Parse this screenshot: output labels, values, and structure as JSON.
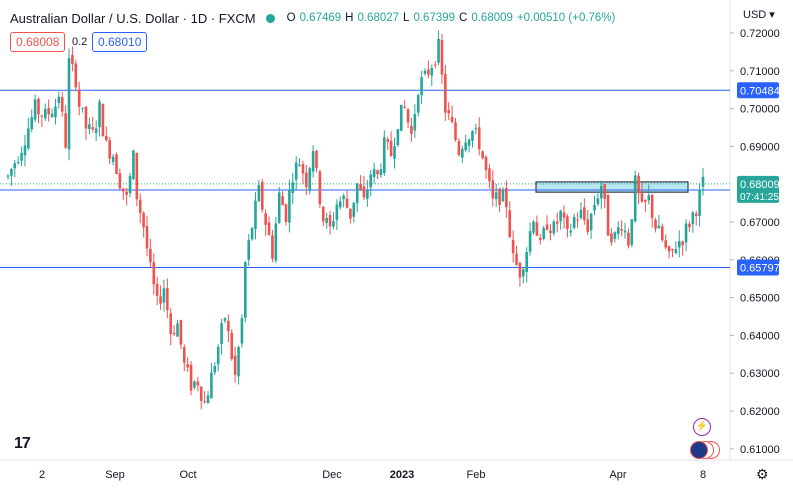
{
  "header": {
    "title": "Australian Dollar / U.S. Dollar · 1D · FXCM",
    "open_label": "O",
    "open": "0.67469",
    "high_label": "H",
    "high": "0.68027",
    "low_label": "L",
    "low": "0.67399",
    "close_label": "C",
    "close": "0.68009",
    "change": "+0.00510 (+0.76%)"
  },
  "trade": {
    "sell": "0.68008",
    "spread": "0.2",
    "buy": "0.68010"
  },
  "currency": "USD",
  "colors": {
    "up": "#26a69a",
    "down": "#ef5350",
    "hline": "#2962ff",
    "zone": "#7fd3e6"
  },
  "chart_data": {
    "type": "candlestick",
    "y_ticks": [
      "0.72000",
      "0.71000",
      "0.70000",
      "0.69000",
      "0.67000",
      "0.66000",
      "0.65000",
      "0.64000",
      "0.63000",
      "0.62000",
      "0.61000"
    ],
    "y_tick_values": [
      0.72,
      0.71,
      0.7,
      0.69,
      0.67,
      0.66,
      0.65,
      0.64,
      0.63,
      0.62,
      0.61
    ],
    "x_ticks": [
      "2",
      "Sep",
      "Oct",
      "Dec",
      "2023",
      "Feb",
      "Apr",
      "8"
    ],
    "horizontal_lines": [
      {
        "value": 0.70484,
        "label": "0.70484"
      },
      {
        "value": 0.67846,
        "label": "0.67846"
      },
      {
        "value": 0.65797,
        "label": "0.65797"
      }
    ],
    "last_price": {
      "value": 0.68009,
      "label": "0.68009",
      "countdown": "07:41:25"
    },
    "zone": {
      "from": 0.6779,
      "to": 0.6806
    },
    "path": [
      [
        0,
        0.682
      ],
      [
        4,
        0.69
      ],
      [
        8,
        0.7
      ],
      [
        11,
        0.698
      ],
      [
        14,
        0.701
      ],
      [
        15,
        0.704
      ],
      [
        17,
        0.691
      ],
      [
        18,
        0.712
      ],
      [
        20,
        0.708
      ],
      [
        21,
        0.701
      ],
      [
        23,
        0.695
      ],
      [
        25,
        0.693
      ],
      [
        27,
        0.7
      ],
      [
        29,
        0.69
      ],
      [
        31,
        0.688
      ],
      [
        33,
        0.681
      ],
      [
        35,
        0.676
      ],
      [
        37,
        0.687
      ],
      [
        38,
        0.677
      ],
      [
        40,
        0.669
      ],
      [
        42,
        0.657
      ],
      [
        44,
        0.648
      ],
      [
        46,
        0.653
      ],
      [
        48,
        0.641
      ],
      [
        50,
        0.643
      ],
      [
        52,
        0.632
      ],
      [
        54,
        0.627
      ],
      [
        56,
        0.628
      ],
      [
        58,
        0.622
      ],
      [
        60,
        0.629
      ],
      [
        62,
        0.637
      ],
      [
        64,
        0.645
      ],
      [
        65,
        0.64
      ],
      [
        67,
        0.629
      ],
      [
        69,
        0.644
      ],
      [
        70,
        0.659
      ],
      [
        72,
        0.669
      ],
      [
        74,
        0.678
      ],
      [
        76,
        0.67
      ],
      [
        78,
        0.662
      ],
      [
        80,
        0.677
      ],
      [
        82,
        0.672
      ],
      [
        84,
        0.683
      ],
      [
        86,
        0.686
      ],
      [
        88,
        0.681
      ],
      [
        90,
        0.69
      ],
      [
        91,
        0.682
      ],
      [
        93,
        0.671
      ],
      [
        95,
        0.668
      ],
      [
        97,
        0.675
      ],
      [
        99,
        0.676
      ],
      [
        101,
        0.672
      ],
      [
        103,
        0.68
      ],
      [
        105,
        0.675
      ],
      [
        107,
        0.683
      ],
      [
        109,
        0.682
      ],
      [
        111,
        0.69
      ],
      [
        113,
        0.688
      ],
      [
        115,
        0.697
      ],
      [
        117,
        0.7
      ],
      [
        119,
        0.693
      ],
      [
        121,
        0.706
      ],
      [
        123,
        0.708
      ],
      [
        125,
        0.712
      ],
      [
        127,
        0.716
      ],
      [
        129,
        0.7
      ],
      [
        131,
        0.695
      ],
      [
        133,
        0.689
      ],
      [
        135,
        0.693
      ],
      [
        137,
        0.694
      ],
      [
        139,
        0.691
      ],
      [
        141,
        0.683
      ],
      [
        143,
        0.675
      ],
      [
        145,
        0.677
      ],
      [
        147,
        0.675
      ],
      [
        149,
        0.66
      ],
      [
        151,
        0.657
      ],
      [
        153,
        0.663
      ],
      [
        155,
        0.672
      ],
      [
        157,
        0.663
      ],
      [
        159,
        0.67
      ],
      [
        161,
        0.668
      ],
      [
        163,
        0.672
      ],
      [
        165,
        0.666
      ],
      [
        167,
        0.671
      ],
      [
        169,
        0.672
      ],
      [
        171,
        0.669
      ],
      [
        173,
        0.675
      ],
      [
        175,
        0.68
      ],
      [
        177,
        0.668
      ],
      [
        179,
        0.666
      ],
      [
        181,
        0.67
      ],
      [
        183,
        0.665
      ],
      [
        185,
        0.68
      ],
      [
        187,
        0.673
      ],
      [
        189,
        0.676
      ],
      [
        191,
        0.669
      ],
      [
        193,
        0.665
      ],
      [
        195,
        0.66
      ],
      [
        197,
        0.664
      ],
      [
        199,
        0.666
      ],
      [
        201,
        0.67
      ],
      [
        203,
        0.674
      ],
      [
        205,
        0.68
      ]
    ]
  }
}
